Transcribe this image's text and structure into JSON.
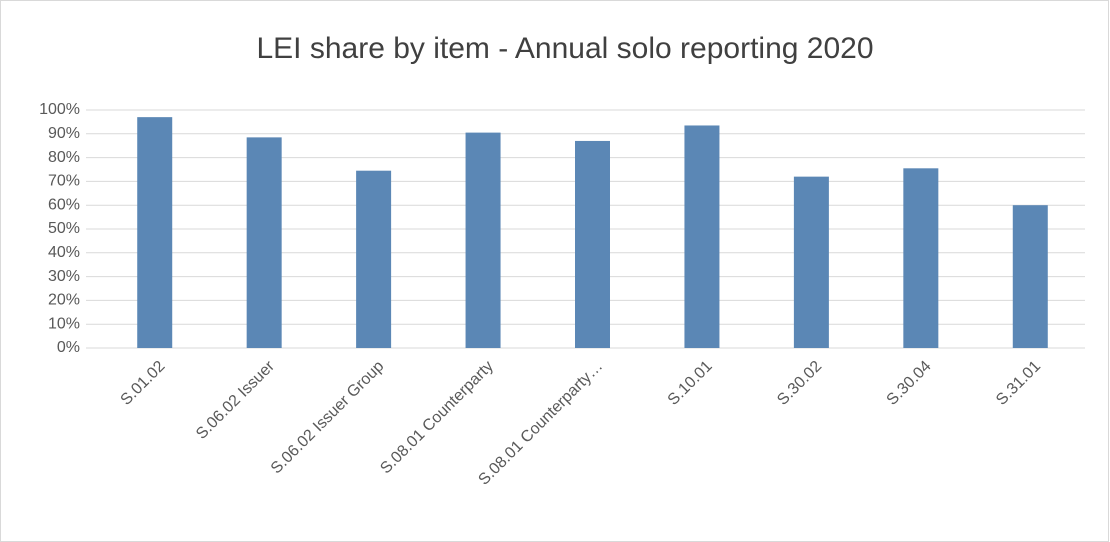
{
  "chart_data": {
    "type": "bar",
    "title": "LEI share by item - Annual solo reporting 2020",
    "categories": [
      "S.01.02",
      "S.06.02 Issuer",
      "S.06.02 Issuer Group",
      "S.08.01 Counterparty",
      "S.08.01 Counterparty…",
      "S.10.01",
      "S.30.02",
      "S.30.04",
      "S.31.01"
    ],
    "values": [
      97,
      88.5,
      74.5,
      90.5,
      87,
      93.5,
      72,
      75.5,
      60
    ],
    "color": "#5b87b5",
    "ylim": [
      0,
      100
    ],
    "yticks": [
      {
        "value": 0,
        "label": "0%"
      },
      {
        "value": 10,
        "label": "10%"
      },
      {
        "value": 20,
        "label": "20%"
      },
      {
        "value": 30,
        "label": "30%"
      },
      {
        "value": 40,
        "label": "40%"
      },
      {
        "value": 50,
        "label": "50%"
      },
      {
        "value": 60,
        "label": "60%"
      },
      {
        "value": 70,
        "label": "70%"
      },
      {
        "value": 80,
        "label": "80%"
      },
      {
        "value": 90,
        "label": "90%"
      },
      {
        "value": 100,
        "label": "100%"
      }
    ],
    "grid": true
  }
}
